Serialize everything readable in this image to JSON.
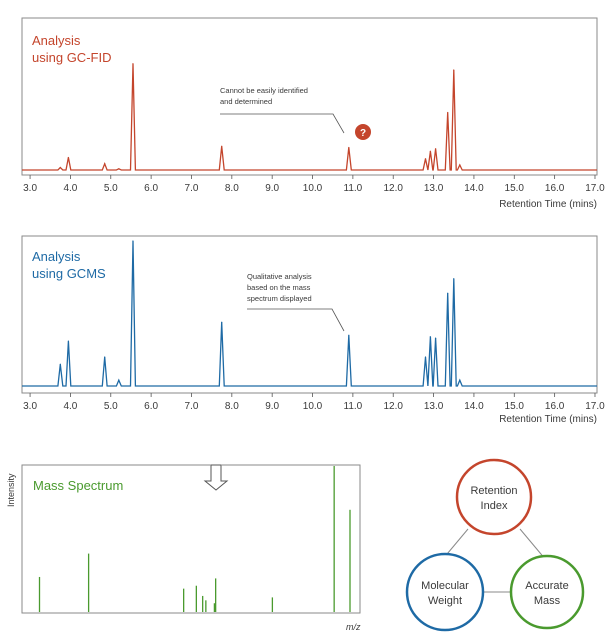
{
  "chart_data": [
    {
      "type": "line",
      "id": "fid",
      "title_lines": [
        "Analysis",
        "using GC-FID"
      ],
      "xlabel": "Retention Time (mins)",
      "xlim": [
        2.8,
        17.05
      ],
      "ylim": [
        0,
        100
      ],
      "x_ticks": [
        "3.0",
        "4.0",
        "5.0",
        "6.0",
        "7.0",
        "8.0",
        "9.0",
        "10.0",
        "11.0",
        "12.0",
        "13.0",
        "14.0",
        "15.0",
        "16.0",
        "17.0"
      ],
      "color": "#c4452c",
      "peaks": [
        {
          "x": 3.75,
          "y": 2
        },
        {
          "x": 3.95,
          "y": 10
        },
        {
          "x": 4.85,
          "y": 5
        },
        {
          "x": 5.2,
          "y": 1
        },
        {
          "x": 5.55,
          "y": 85
        },
        {
          "x": 7.75,
          "y": 19
        },
        {
          "x": 10.9,
          "y": 18
        },
        {
          "x": 12.8,
          "y": 9
        },
        {
          "x": 12.92,
          "y": 15
        },
        {
          "x": 13.05,
          "y": 17
        },
        {
          "x": 13.35,
          "y": 46
        },
        {
          "x": 13.5,
          "y": 80
        },
        {
          "x": 13.65,
          "y": 4
        }
      ],
      "annotation_lines": [
        "Cannot be easily identified",
        "and determined"
      ],
      "badge": "?"
    },
    {
      "type": "line",
      "id": "gcms",
      "title_lines": [
        "Analysis",
        "using GCMS"
      ],
      "xlabel": "Retention Time (mins)",
      "xlim": [
        2.8,
        17.05
      ],
      "ylim": [
        0,
        100
      ],
      "x_ticks": [
        "3.0",
        "4.0",
        "5.0",
        "6.0",
        "7.0",
        "8.0",
        "9.0",
        "10.0",
        "11.0",
        "12.0",
        "13.0",
        "14.0",
        "15.0",
        "16.0",
        "17.0"
      ],
      "color": "#1e6aa5",
      "peaks": [
        {
          "x": 3.75,
          "y": 15
        },
        {
          "x": 3.95,
          "y": 31
        },
        {
          "x": 4.85,
          "y": 20
        },
        {
          "x": 5.2,
          "y": 4
        },
        {
          "x": 5.55,
          "y": 100
        },
        {
          "x": 7.75,
          "y": 44
        },
        {
          "x": 10.9,
          "y": 35
        },
        {
          "x": 12.8,
          "y": 20
        },
        {
          "x": 12.92,
          "y": 34
        },
        {
          "x": 13.05,
          "y": 33
        },
        {
          "x": 13.35,
          "y": 64
        },
        {
          "x": 13.5,
          "y": 74
        },
        {
          "x": 13.65,
          "y": 4
        }
      ],
      "annotation_lines": [
        "Qualitative analysis",
        "based on the mass",
        "spectrum displayed"
      ]
    },
    {
      "type": "bar",
      "id": "mass",
      "title": "Mass Spectrum",
      "ylabel": "Intensity",
      "xlabel": "m/z",
      "xlim": [
        0,
        100
      ],
      "ylim": [
        0,
        100
      ],
      "color": "#4a9a2e",
      "bars": [
        {
          "x": 3,
          "y": 24
        },
        {
          "x": 18.5,
          "y": 40
        },
        {
          "x": 48.5,
          "y": 16
        },
        {
          "x": 52.5,
          "y": 18
        },
        {
          "x": 54.5,
          "y": 11
        },
        {
          "x": 55.5,
          "y": 8
        },
        {
          "x": 58.2,
          "y": 6
        },
        {
          "x": 58.6,
          "y": 23
        },
        {
          "x": 76.5,
          "y": 10
        },
        {
          "x": 96,
          "y": 100
        },
        {
          "x": 101,
          "y": 70
        }
      ]
    }
  ],
  "venn": {
    "nodes": [
      {
        "label_lines": [
          "Retention",
          "Index"
        ],
        "color": "#c4452c"
      },
      {
        "label_lines": [
          "Molecular",
          "Weight"
        ],
        "color": "#1e6aa5"
      },
      {
        "label_lines": [
          "Accurate",
          "Mass"
        ],
        "color": "#4a9a2e"
      }
    ]
  }
}
